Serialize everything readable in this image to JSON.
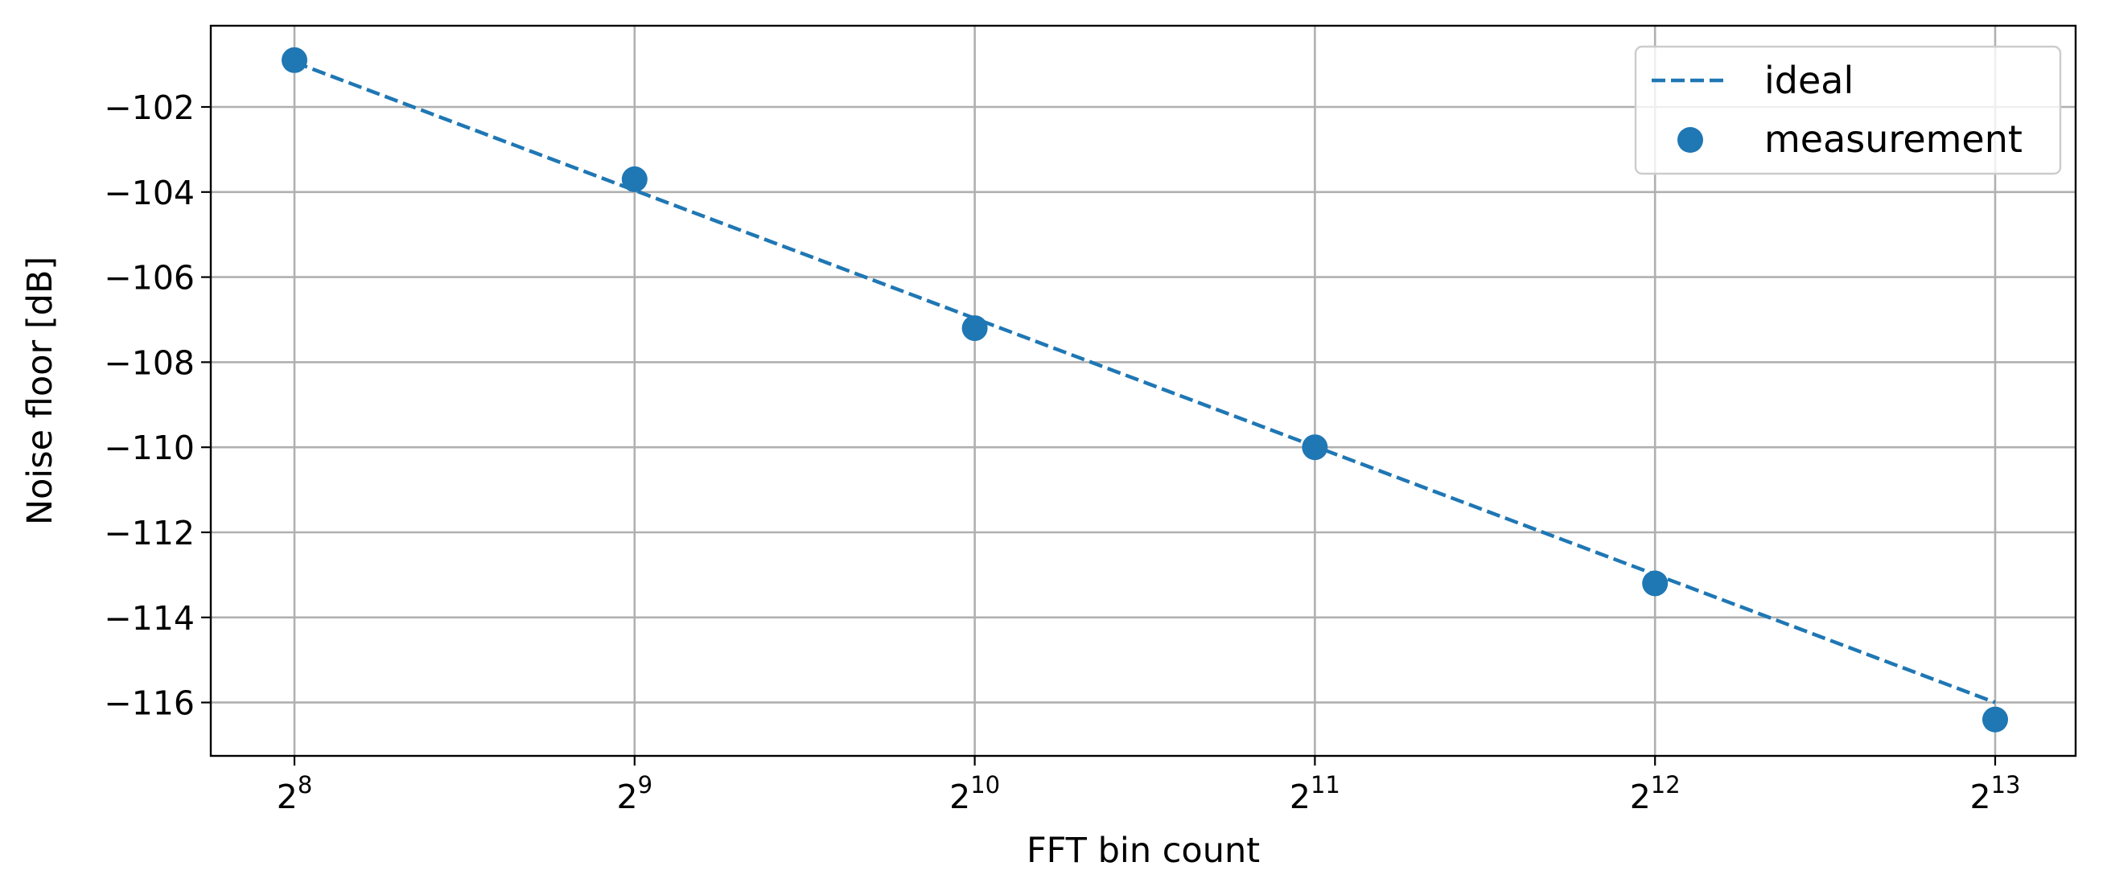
{
  "chart_data": {
    "type": "scatter",
    "title": "",
    "xlabel": "FFT bin count",
    "ylabel": "Noise floor [dB]",
    "x_scale": "log2",
    "x": [
      256,
      512,
      1024,
      2048,
      4096,
      8192
    ],
    "x_tick_labels": [
      {
        "base": "2",
        "exp": "8"
      },
      {
        "base": "2",
        "exp": "9"
      },
      {
        "base": "2",
        "exp": "10"
      },
      {
        "base": "2",
        "exp": "11"
      },
      {
        "base": "2",
        "exp": "12"
      },
      {
        "base": "2",
        "exp": "13"
      }
    ],
    "y_ticks": [
      -102,
      -104,
      -106,
      -108,
      -110,
      -112,
      -114,
      -116
    ],
    "y_tick_labels": [
      "−102",
      "−104",
      "−106",
      "−108",
      "−110",
      "−112",
      "−114",
      "−116"
    ],
    "ylim": [
      -117.2,
      -100.2
    ],
    "grid": true,
    "legend_position": "top-right",
    "series": [
      {
        "name": "ideal",
        "kind": "line",
        "style": "dashed",
        "color": "#1f77b4",
        "x": [
          256,
          8192
        ],
        "values": [
          -100.95,
          -116.0
        ]
      },
      {
        "name": "measurement",
        "kind": "scatter",
        "color": "#1f77b4",
        "x": [
          256,
          512,
          1024,
          2048,
          4096,
          8192
        ],
        "values": [
          -100.9,
          -103.7,
          -107.2,
          -110.0,
          -113.2,
          -116.4
        ]
      }
    ]
  }
}
